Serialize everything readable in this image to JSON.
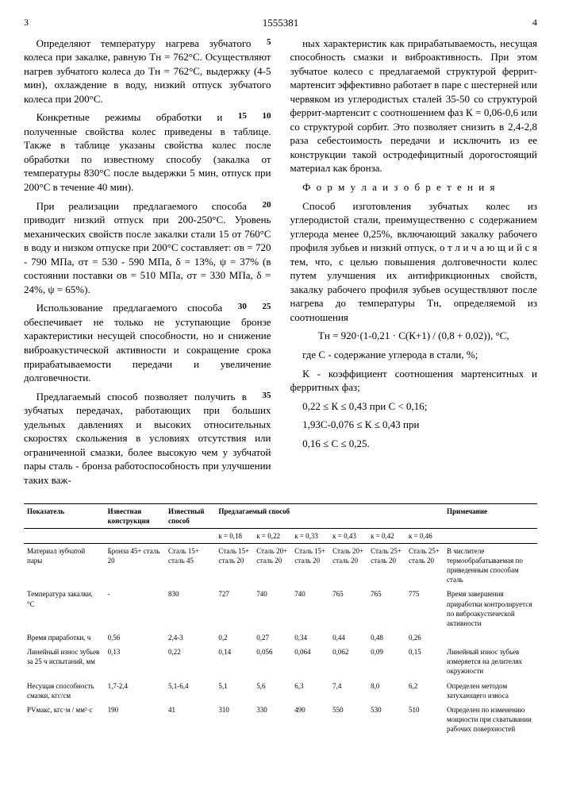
{
  "header": {
    "page_left": "3",
    "doc_number": "1555381",
    "page_right": "4"
  },
  "left_col": {
    "p1": "Определяют температуру нагрева зубчатого колеса при закалке, равную Tн = 762°С. Осуществляют нагрев зубчатого колеса до Tн = 762°С, выдержку (4-5 мин), охлаждение в воду, низкий отпуск зубчатого колеса при 200°С.",
    "n1": "5",
    "p2": "Конкретные режимы обработки и полученные свойства колес приведены в таблице. Также в таблице указаны свойства колес после обработки по известному способу (закалка от температуры 830°С после выдержки 5 мин, отпуск при 200°С в течение 40 мин).",
    "n2": "10",
    "n3": "15",
    "p3": "При реализации предлагаемого способа приводит низкий отпуск при 200-250°С. Уровень механических свойств после закалки стали 15 от 760°С в воду и низком отпуске при 200°С составляет: σв = 720 - 790 МПа, σт = 530 - 590 МПа, δ = 13%, ψ = 37% (в состоянии поставки σв = 510 МПа, σт = 330 МПа, δ = 24%, ψ = 65%).",
    "n4": "20",
    "p4": "Использование предлагаемого способа обеспечивает не только не уступающие бронзе характеристики несущей способности, но и снижение виброакустической активности и сокращение срока прирабатываемости передачи и увеличение долговечности.",
    "n5": "25",
    "n6": "30",
    "p5": "Предлагаемый способ позволяет получить в зубчатых передачах, работающих при больших удельных давлениях и высоких относительных скоростях скольжения в условиях отсутствия или ограниченной смазки, более высокую чем у зубчатой пары сталь - бронза работоспособность при улучшении таких важ-",
    "n7": "35"
  },
  "right_col": {
    "p1": "ных характеристик как прирабатываемость, несущая способность смазки и виброактивность. При этом зубчатое колесо с предлагаемой структурой феррит-мартенсит эффективно работает в паре с шестерней или червяком из углеродистых сталей 35-50 со структурой феррит-мартенсит с соотношением фаз К = 0,06-0,6 или со структурой сорбит. Это позволяет снизить в 2,4-2,8 раза себестоимость передачи и исключить из ее конструкции такой остродефицитный дорогостоящий материал как бронза.",
    "formula_title": "Ф о р м у л а   и з о б р е т е н и я",
    "p2": "Способ изготовления зубчатых колес из углеродистой стали, преимущественно с содержанием углерода менее 0,25%, включающий закалку рабочего профиля зубьев и низкий отпуск, о т л и ч а ю щ и й с я  тем, что, с целью повышения долговечности колес путем улучшения их антифрикционных свойств, закалку рабочего профиля зубьев осуществляют после нагрева до температуры Tн, определяемой из соотношения",
    "eq": "Tн = 920·(1-0,21 · С(К+1) / (0,8 + 0,02)), °С,",
    "where1": "где С - содержание углерода в стали, %;",
    "where2": "К - коэффициент соотношения мартенситных и ферритных фаз;",
    "cond1": "0,22 ≤ К ≤ 0,43  при  С < 0,16;",
    "cond2": "1,93С-0,076 ≤ К ≤ 0,43  при",
    "cond3": "0,16 ≤ С ≤ 0,25."
  },
  "table": {
    "headers": [
      "Показатель",
      "Известная конструкция",
      "Известный способ",
      "Предлагаемый способ",
      "Примечание"
    ],
    "subheaders": [
      "",
      "",
      "",
      "к = 0,18",
      "к = 0,22",
      "к = 0,33",
      "к = 0,43",
      "к = 0,42",
      "к = 0,46",
      ""
    ],
    "rows": [
      {
        "label": "Материал зубчатой пары",
        "c1": "Бронза 45+ сталь 20",
        "c2": "Сталь 15+ сталь 45",
        "v": [
          "Сталь 15+ сталь 20",
          "Сталь 20+ сталь 20",
          "Сталь 15+ сталь 20",
          "Сталь 20+ сталь 20",
          "Сталь 25+ сталь 20",
          "Сталь 25+ сталь 20"
        ],
        "note": "В числителе термообрабатываемая по приведенным способам сталь"
      },
      {
        "label": "Температура закалки, °С",
        "c1": "-",
        "c2": "830",
        "v": [
          "727",
          "740",
          "740",
          "765",
          "765",
          "775"
        ],
        "note": "Время завершения приработки контролируется по виброакустической активности"
      },
      {
        "label": "Время приработки, ч",
        "c1": "0,56",
        "c2": "2,4-3",
        "v": [
          "0,2",
          "0,27",
          "0,34",
          "0,44",
          "0,48",
          "0,26"
        ],
        "note": ""
      },
      {
        "label": "Линейный износ зубьев за 25 ч испытаний, мм",
        "c1": "0,13",
        "c2": "0,22",
        "v": [
          "0,14",
          "0,056",
          "0,064",
          "0,062",
          "0,09",
          "0,15"
        ],
        "note": "Линейный износ зубьев измеряется на делителях окружности"
      },
      {
        "label": "Несущая способность смазки, кгс/см",
        "c1": "1,7-2,4",
        "c2": "5,1-6,4",
        "v": [
          "5,1",
          "5,6",
          "6,3",
          "7,4",
          "8,0",
          "6,2"
        ],
        "note": "Определен методом затухающего износа"
      },
      {
        "label": "PVмакс, кгс·м / мм²·с",
        "c1": "190",
        "c2": "41",
        "v": [
          "310",
          "330",
          "490",
          "550",
          "530",
          "510"
        ],
        "note": "Определен по изменению мощности при схватывании рабочих поверхностей"
      }
    ]
  }
}
